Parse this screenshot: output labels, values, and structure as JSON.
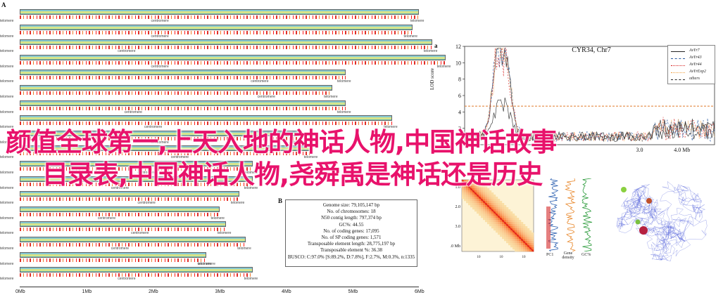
{
  "panel_labels": {
    "a_left": "A",
    "a_right": "a",
    "b": "B"
  },
  "overlay": {
    "line1": "颜值全球第一,上天入地的神话人物,中国神话故事",
    "line2": "目录表,中国神话人物,尧舜禹是神话还是历史"
  },
  "ideogram": {
    "telomere_label": "telomere",
    "centromere_label": "centromere",
    "axis_ticks": [
      "0Mb",
      "1Mb",
      "2Mb",
      "3Mb",
      "4Mb",
      "5Mb",
      "6Mb"
    ],
    "chromosome_lengths_mb": [
      6.0,
      5.9,
      6.2,
      6.4,
      4.9,
      4.7,
      4.9,
      5.6,
      4.2,
      4.4,
      3.5,
      3.5,
      3.3,
      3.0,
      3.1,
      3.4,
      2.8,
      3.5
    ],
    "centromere_position_mb": [
      2.1,
      2.1,
      1.6,
      2.1,
      3.6,
      3.7,
      1.7,
      2.0,
      2.1,
      2.4,
      1.9,
      1.5,
      1.9,
      1.3,
      1.8,
      1.5,
      2.8,
      1.6
    ]
  },
  "busco": {
    "rows": [
      "Genome size: 79,105,147 bp",
      "No. of chromosomes: 18",
      "N50 contig length: 797,374 bp",
      "GC%: 44.55",
      "No. of coding genes: 17,095",
      "No. of SP coding genes: 1,571",
      "Transposable element length: 28,775,197 bp",
      "Transposable element %: 36.38",
      "BUSCO: C:97.0% [S:89.2%, D:7.8%], F:2.7%, M:0.3%, n:1335"
    ]
  },
  "chart_data": {
    "type": "line",
    "title": "CYR34, Chr7",
    "ylabel": "LOD score",
    "y_ticks": [
      "12",
      "10",
      "8",
      "6",
      "4",
      "2"
    ],
    "x_ticks": [
      "3.0",
      "4.0 Mb"
    ],
    "threshold_lod": 4.7,
    "legend": [
      "AvYr7",
      "AvYr43",
      "AvYr44",
      "AvYrExp2",
      "others"
    ],
    "series_colors": [
      "#222222",
      "#2c5aa0",
      "#d62020",
      "#f0a040",
      "#222222"
    ]
  },
  "hic": {
    "y_ticks": [
      "1.0",
      "2.0",
      "3.0",
      "4.0\nMb"
    ],
    "x_ticks": [
      "10",
      "10",
      "10"
    ],
    "tracks": [
      "PC1",
      "Gene density",
      "GC%"
    ]
  }
}
